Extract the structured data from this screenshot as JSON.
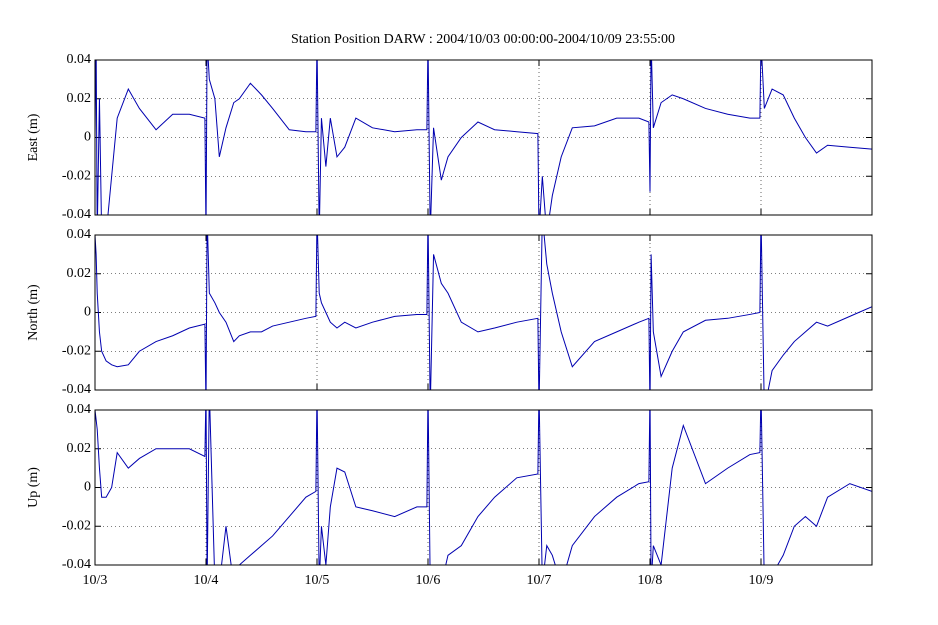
{
  "chart_data": [
    {
      "type": "line",
      "title": "Station Position DARW : 2004/10/03 00:00:00-2004/10/09 23:55:00",
      "ylabel": "East (m)",
      "color": "#0000b0",
      "grid": true,
      "xlim": [
        0,
        7
      ],
      "xticks": [
        0,
        1,
        2,
        3,
        4,
        5,
        6,
        7
      ],
      "ylim": [
        -0.04,
        0.04
      ],
      "yticks": [
        0.04,
        0.02,
        0,
        -0.02,
        -0.04
      ],
      "x": [
        0,
        0.01,
        0.02,
        0.04,
        0.06,
        0.1,
        0.15,
        0.2,
        0.3,
        0.4,
        0.55,
        0.7,
        0.85,
        0.99,
        1.0,
        1.01,
        1.03,
        1.08,
        1.12,
        1.18,
        1.25,
        1.3,
        1.4,
        1.5,
        1.6,
        1.75,
        1.9,
        1.99,
        2.0,
        2.02,
        2.04,
        2.08,
        2.12,
        2.18,
        2.25,
        2.35,
        2.5,
        2.7,
        2.9,
        2.99,
        3.0,
        3.02,
        3.05,
        3.12,
        3.18,
        3.3,
        3.45,
        3.6,
        3.8,
        3.99,
        4.0,
        4.03,
        4.07,
        4.12,
        4.2,
        4.3,
        4.5,
        4.7,
        4.9,
        4.99,
        5.0,
        5.01,
        5.03,
        5.1,
        5.2,
        5.3,
        5.5,
        5.7,
        5.9,
        5.99,
        6.0,
        6.03,
        6.1,
        6.2,
        6.3,
        6.4,
        6.5,
        6.6,
        6.8,
        7.0
      ],
      "values": [
        0,
        0.05,
        -0.05,
        0.02,
        -0.05,
        -0.05,
        -0.02,
        0.01,
        0.025,
        0.015,
        0.004,
        0.012,
        0.012,
        0.01,
        -0.05,
        0.05,
        0.03,
        0.02,
        -0.01,
        0.005,
        0.018,
        0.02,
        0.028,
        0.022,
        0.015,
        0.004,
        0.003,
        0.003,
        0.05,
        -0.05,
        0.01,
        -0.015,
        0.01,
        -0.01,
        -0.005,
        0.01,
        0.005,
        0.003,
        0.004,
        0.004,
        0.05,
        -0.05,
        0.005,
        -0.022,
        -0.01,
        0.0,
        0.008,
        0.004,
        0.003,
        0.002,
        -0.05,
        -0.02,
        -0.05,
        -0.03,
        -0.01,
        0.005,
        0.006,
        0.01,
        0.01,
        0.008,
        -0.028,
        0.05,
        0.005,
        0.018,
        0.022,
        0.02,
        0.015,
        0.012,
        0.01,
        0.01,
        0.05,
        0.015,
        0.025,
        0.022,
        0.01,
        0.0,
        -0.008,
        -0.004,
        -0.005,
        -0.006
      ]
    },
    {
      "type": "line",
      "ylabel": "North (m)",
      "color": "#0000b0",
      "grid": true,
      "xlim": [
        0,
        7
      ],
      "xticks": [
        0,
        1,
        2,
        3,
        4,
        5,
        6,
        7
      ],
      "ylim": [
        -0.04,
        0.04
      ],
      "yticks": [
        0.04,
        0.02,
        0,
        -0.02,
        -0.04
      ],
      "x": [
        0,
        0.01,
        0.02,
        0.04,
        0.06,
        0.1,
        0.15,
        0.2,
        0.3,
        0.4,
        0.55,
        0.7,
        0.85,
        0.99,
        1.0,
        1.01,
        1.03,
        1.08,
        1.12,
        1.18,
        1.25,
        1.3,
        1.4,
        1.5,
        1.6,
        1.75,
        1.9,
        1.99,
        2.0,
        2.02,
        2.04,
        2.08,
        2.12,
        2.18,
        2.25,
        2.35,
        2.5,
        2.7,
        2.9,
        2.99,
        3.0,
        3.02,
        3.05,
        3.12,
        3.18,
        3.3,
        3.45,
        3.6,
        3.8,
        3.99,
        4.0,
        4.03,
        4.07,
        4.12,
        4.2,
        4.3,
        4.5,
        4.7,
        4.9,
        4.99,
        5.0,
        5.01,
        5.03,
        5.1,
        5.2,
        5.3,
        5.5,
        5.7,
        5.9,
        5.99,
        6.0,
        6.03,
        6.1,
        6.2,
        6.3,
        6.4,
        6.5,
        6.6,
        6.8,
        7.0
      ],
      "values": [
        0.04,
        0.03,
        0.01,
        -0.01,
        -0.02,
        -0.025,
        -0.027,
        -0.028,
        -0.027,
        -0.02,
        -0.015,
        -0.012,
        -0.008,
        -0.006,
        -0.05,
        0.05,
        0.01,
        0.005,
        0,
        -0.005,
        -0.015,
        -0.012,
        -0.01,
        -0.01,
        -0.007,
        -0.005,
        -0.003,
        -0.002,
        0.05,
        0.01,
        0.005,
        0,
        -0.005,
        -0.008,
        -0.005,
        -0.008,
        -0.005,
        -0.002,
        -0.001,
        -0.001,
        0.05,
        -0.05,
        0.03,
        0.015,
        0.01,
        -0.005,
        -0.01,
        -0.008,
        -0.005,
        -0.003,
        -0.05,
        0.05,
        0.025,
        0.01,
        -0.01,
        -0.028,
        -0.015,
        -0.01,
        -0.005,
        -0.003,
        -0.05,
        0.03,
        -0.01,
        -0.033,
        -0.02,
        -0.01,
        -0.004,
        -0.003,
        -0.001,
        0,
        0.05,
        -0.05,
        -0.03,
        -0.022,
        -0.015,
        -0.01,
        -0.005,
        -0.007,
        -0.002,
        0.003
      ]
    },
    {
      "type": "line",
      "ylabel": "Up (m)",
      "color": "#0000b0",
      "grid": true,
      "xlim": [
        0,
        7
      ],
      "xticks": [
        {
          "value": 0,
          "label": "10/3"
        },
        {
          "value": 1,
          "label": "10/4"
        },
        {
          "value": 2,
          "label": "10/5"
        },
        {
          "value": 3,
          "label": "10/6"
        },
        {
          "value": 4,
          "label": "10/7"
        },
        {
          "value": 5,
          "label": "10/8"
        },
        {
          "value": 6,
          "label": "10/9"
        },
        7
      ],
      "ylim": [
        -0.04,
        0.04
      ],
      "yticks": [
        0.04,
        0.02,
        0,
        -0.02,
        -0.04
      ],
      "x": [
        0,
        0.01,
        0.02,
        0.04,
        0.06,
        0.1,
        0.15,
        0.2,
        0.3,
        0.4,
        0.55,
        0.7,
        0.85,
        0.99,
        1.0,
        1.01,
        1.03,
        1.08,
        1.12,
        1.18,
        1.25,
        1.3,
        1.4,
        1.5,
        1.6,
        1.75,
        1.9,
        1.99,
        2.0,
        2.02,
        2.04,
        2.08,
        2.12,
        2.18,
        2.25,
        2.35,
        2.5,
        2.7,
        2.9,
        2.99,
        3.0,
        3.02,
        3.05,
        3.12,
        3.18,
        3.3,
        3.45,
        3.6,
        3.8,
        3.99,
        4.0,
        4.03,
        4.07,
        4.12,
        4.2,
        4.3,
        4.5,
        4.7,
        4.9,
        4.99,
        5.0,
        5.01,
        5.03,
        5.1,
        5.2,
        5.3,
        5.5,
        5.7,
        5.9,
        5.99,
        6.0,
        6.03,
        6.1,
        6.2,
        6.3,
        6.4,
        6.5,
        6.6,
        6.8,
        7.0
      ],
      "values": [
        0.04,
        0.035,
        0.03,
        0.01,
        -0.005,
        -0.005,
        0,
        0.018,
        0.01,
        0.015,
        0.02,
        0.02,
        0.02,
        0.016,
        0.05,
        -0.05,
        0.05,
        -0.05,
        -0.05,
        -0.02,
        -0.05,
        -0.04,
        -0.035,
        -0.03,
        -0.025,
        -0.015,
        -0.005,
        -0.002,
        0.05,
        -0.05,
        -0.02,
        -0.04,
        -0.01,
        0.01,
        0.008,
        -0.01,
        -0.012,
        -0.015,
        -0.01,
        -0.01,
        0.05,
        -0.05,
        -0.05,
        -0.05,
        -0.035,
        -0.03,
        -0.015,
        -0.005,
        0.005,
        0.007,
        0.05,
        -0.05,
        -0.03,
        -0.035,
        -0.05,
        -0.03,
        -0.015,
        -0.005,
        0.002,
        0.003,
        0.05,
        -0.05,
        -0.03,
        -0.04,
        0.01,
        0.032,
        0.002,
        0.01,
        0.017,
        0.018,
        0.05,
        -0.05,
        -0.045,
        -0.035,
        -0.02,
        -0.015,
        -0.02,
        -0.005,
        0.002,
        -0.002
      ]
    }
  ]
}
